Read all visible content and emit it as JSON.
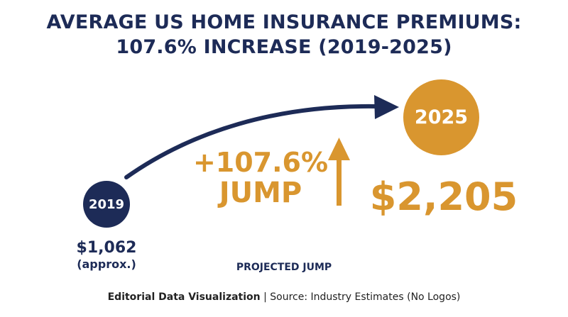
{
  "title": {
    "line1": "AVERAGE US HOME INSURANCE PREMIUMS:",
    "line2": "107.6% INCREASE (2019-2025)"
  },
  "chart_data": {
    "type": "comparison",
    "points": [
      {
        "year": "2019",
        "value": 1062,
        "value_label": "$1,062",
        "note": "(approx.)"
      },
      {
        "year": "2025",
        "value": 2205,
        "value_label": "$2,205"
      }
    ],
    "change_label": "+107.6%",
    "change_word": "JUMP",
    "caption": "PROJECTED JUMP"
  },
  "footer": {
    "bold": "Editorial Data Visualization",
    "rest": " | Source: Industry Estimates (No Logos)"
  },
  "colors": {
    "navy": "#1d2b57",
    "gold": "#d9962f"
  }
}
